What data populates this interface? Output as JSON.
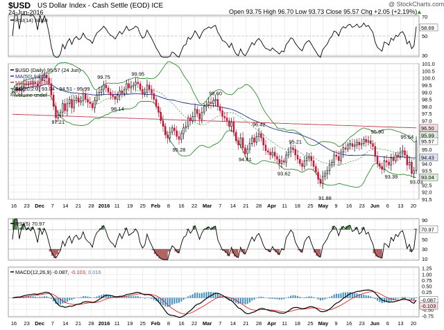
{
  "header": {
    "symbol": "$USD",
    "name": "US Dollar Index - Cash Settle (EOD) ICE",
    "date": "24-Jun-2016",
    "watermark": "@ StockCharts.com",
    "ohlc": "Open 93.75  High 96.70  Low 93.73  Close 95.57  Chg +2.05 (+2.19%)",
    "change_arrow": "▲"
  },
  "legends": {
    "rsi14": "RSI(14) 58.69",
    "main_title": "$USD (Daily) 95.57 (24 Jun)",
    "ma50": "MA(50) 94.43",
    "ma200": "MA(200) 96.50",
    "bb": "BB(20,2.0) 93.04 - 94.51 - 95.99",
    "volume": "Volume undef",
    "rsi5": "RSI(5) 70.97",
    "macd_name": "MACD(12,26,9)",
    "macd_v1": "-0.087,",
    "macd_v2": "-0.103,",
    "macd_v3": "0.016"
  },
  "colors": {
    "up": "#000000",
    "down": "#cc1133",
    "ma50": "#1f2f8f",
    "ma200": "#c0394b",
    "bb": "#2e8b2e",
    "bbmid": "#2e8b2e",
    "rsi": "#000000",
    "macd": "#000000",
    "signal": "#e02020",
    "hist": "#3f8fc4",
    "ob": "#2f6f2f",
    "os": "#a04040"
  },
  "chart_data": {
    "type": "candlestick",
    "x_labels": [
      "16",
      "23",
      "Dec",
      "7",
      "14",
      "21",
      "28",
      "2016",
      "11",
      "19",
      "25",
      "Feb",
      "8",
      "16",
      "22",
      "Mar",
      "7",
      "14",
      "21",
      "28",
      "Apr",
      "11",
      "18",
      "25",
      "May",
      "9",
      "16",
      "23",
      "Jun",
      "6",
      "13",
      "20"
    ],
    "price": {
      "ylim": [
        91.5,
        101.0
      ],
      "ticks": [
        "101.0",
        "100.5",
        "100.0",
        "99.5",
        "99.0",
        "98.5",
        "98.0",
        "97.5",
        "97.0",
        "96.5",
        "96.0",
        "95.5",
        "95.0",
        "94.5",
        "94.0",
        "93.5",
        "93.0",
        "92.5",
        "92.0",
        "91.5"
      ],
      "tags": [
        {
          "label": "96.50",
          "v": 96.5,
          "kind": "ma200"
        },
        {
          "label": "95.99",
          "v": 95.99,
          "kind": "bb"
        },
        {
          "label": "95.57",
          "v": 95.57,
          "kind": "close"
        },
        {
          "label": "94.43",
          "v": 94.43,
          "kind": "ma50"
        },
        {
          "label": "93.04",
          "v": 93.04,
          "kind": "bb"
        }
      ],
      "annotations": [
        {
          "text": "97.21",
          "i": 20,
          "v": 97.21,
          "pos": "below"
        },
        {
          "text": "99.75",
          "i": 40,
          "v": 99.75,
          "pos": "above"
        },
        {
          "text": "98.14",
          "i": 46,
          "v": 98.14,
          "pos": "below"
        },
        {
          "text": "99.95",
          "i": 55,
          "v": 99.95,
          "pos": "above"
        },
        {
          "text": "95.28",
          "i": 73,
          "v": 95.28,
          "pos": "below"
        },
        {
          "text": "98.60",
          "i": 89,
          "v": 98.6,
          "pos": "above"
        },
        {
          "text": "94.61",
          "i": 102,
          "v": 94.61,
          "pos": "below"
        },
        {
          "text": "96.42",
          "i": 108,
          "v": 96.42,
          "pos": "above"
        },
        {
          "text": "93.62",
          "i": 119,
          "v": 93.62,
          "pos": "below"
        },
        {
          "text": "95.21",
          "i": 124,
          "v": 95.21,
          "pos": "above"
        },
        {
          "text": "91.88",
          "i": 137,
          "v": 91.88,
          "pos": "below"
        },
        {
          "text": "95.90",
          "i": 160,
          "v": 95.9,
          "pos": "above"
        },
        {
          "text": "93.39",
          "i": 166,
          "v": 93.39,
          "pos": "below"
        },
        {
          "text": "95.54",
          "i": 173,
          "v": 95.54,
          "pos": "above"
        },
        {
          "text": "93.03",
          "i": 177,
          "v": 93.03,
          "pos": "below"
        }
      ],
      "close": [
        99.0,
        99.2,
        99.3,
        99.1,
        99.4,
        99.6,
        99.5,
        99.6,
        99.55,
        99.7,
        99.6,
        99.4,
        100.0,
        99.8,
        100.2,
        100.0,
        99.6,
        98.8,
        98.0,
        97.2,
        97.4,
        97.6,
        98.2,
        97.7,
        98.2,
        98.5,
        97.9,
        98.4,
        98.6,
        98.3,
        98.4,
        98.9,
        98.5,
        98.3,
        98.2,
        97.9,
        98.4,
        98.8,
        99.0,
        99.2,
        99.5,
        99.3,
        99.0,
        98.8,
        98.7,
        98.5,
        98.8,
        99.1,
        98.9,
        99.2,
        99.6,
        99.3,
        99.4,
        99.5,
        99.7,
        99.6,
        99.2,
        98.9,
        99.0,
        99.5,
        99.2,
        98.9,
        98.5,
        98.0,
        97.6,
        97.0,
        96.6,
        96.0,
        95.8,
        96.2,
        96.5,
        96.3,
        95.9,
        95.7,
        96.1,
        96.5,
        96.6,
        97.2,
        97.0,
        97.3,
        97.8,
        97.5,
        97.1,
        97.6,
        98.0,
        98.1,
        98.3,
        98.2,
        98.4,
        98.5,
        98.0,
        97.7,
        97.3,
        97.2,
        97.0,
        96.6,
        96.9,
        96.2,
        95.6,
        95.3,
        95.8,
        95.1,
        94.7,
        95.0,
        95.4,
        95.8,
        95.5,
        95.9,
        96.1,
        95.8,
        95.3,
        94.9,
        94.8,
        94.6,
        94.8,
        94.5,
        94.3,
        94.0,
        94.2,
        94.1,
        94.6,
        94.8,
        95.1,
        95.0,
        94.6,
        94.3,
        94.0,
        93.8,
        94.2,
        94.4,
        94.5,
        94.2,
        93.8,
        93.4,
        92.9,
        92.6,
        93.1,
        93.3,
        93.5,
        93.9,
        94.1,
        94.6,
        94.5,
        94.2,
        94.8,
        95.1,
        95.0,
        95.3,
        95.4,
        95.2,
        95.3,
        95.5,
        95.3,
        95.4,
        95.7,
        95.5,
        95.6,
        95.4,
        95.2,
        94.5,
        94.0,
        93.8,
        93.6,
        94.2,
        94.1,
        93.9,
        94.4,
        94.2,
        94.6,
        94.5,
        94.8,
        94.9,
        94.6,
        93.9,
        94.1,
        93.3,
        93.5,
        95.57
      ]
    },
    "rsi14": {
      "ylim": [
        30,
        70
      ],
      "ticks": [
        "70",
        "50",
        "30"
      ],
      "current": 58.69
    },
    "rsi5": {
      "ylim": [
        10,
        90
      ],
      "ticks": [
        "90",
        "70",
        "50",
        "30",
        "10"
      ],
      "current": 70.97
    },
    "macd": {
      "ylim": [
        -0.8,
        1.3
      ],
      "ticks": [
        "1.25",
        "1.00",
        "0.75",
        "0.50",
        "0.25",
        "0.00",
        "-0.25",
        "-0.50",
        "-0.75"
      ],
      "tags": [
        {
          "label": "-0.087",
          "kind": "macd"
        },
        {
          "label": "-0.103",
          "kind": "signal"
        }
      ]
    }
  }
}
